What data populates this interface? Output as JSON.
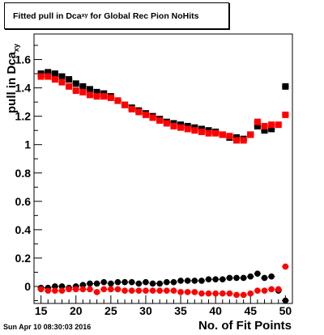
{
  "title": {
    "prefix": "Fitted pull in Dca",
    "sub": "xy",
    "suffix": " for Global Rec Pion NoHits"
  },
  "timestamp": "Sun Apr 10 08:30:03 2016",
  "chart_data": {
    "type": "scatter",
    "title": "Fitted pull in Dca_xy for Global Rec Pion NoHits",
    "xlabel": "No. of Fit Points",
    "ylabel": {
      "main": "pull in Dca",
      "sub": "xy"
    },
    "xlim": [
      14,
      51
    ],
    "ylim": [
      -0.12,
      1.78
    ],
    "x_ticks": [
      15,
      20,
      25,
      30,
      35,
      40,
      45,
      50
    ],
    "y_ticks": [
      0,
      0.2,
      0.4,
      0.6,
      0.8,
      1,
      1.2,
      1.4,
      1.6
    ],
    "y_tick_labels": [
      "0",
      "0.2",
      "0.4",
      "0.6",
      "0.8",
      "1",
      "1.2",
      "1.4",
      "1.6"
    ],
    "grid": false,
    "series": [
      {
        "color": "#000000",
        "x": [
          15,
          16,
          17,
          18,
          19,
          20,
          21,
          22,
          23,
          24,
          25,
          26,
          27,
          28,
          29,
          30,
          31,
          32,
          33,
          34,
          35,
          36,
          37,
          38,
          39,
          40,
          41,
          42,
          43,
          44,
          45,
          46,
          47,
          48,
          49,
          50
        ],
        "y": [
          1.5,
          1.51,
          1.5,
          1.48,
          1.46,
          1.43,
          1.41,
          1.39,
          1.37,
          1.36,
          1.34,
          1.31,
          1.28,
          1.26,
          1.24,
          1.22,
          1.2,
          1.18,
          1.16,
          1.15,
          1.14,
          1.13,
          1.12,
          1.11,
          1.1,
          1.09,
          1.07,
          1.05,
          1.05,
          1.04,
          1.07,
          1.13,
          1.1,
          1.11,
          null,
          1.41
        ]
      },
      {
        "color": "#ff0000",
        "x": [
          15,
          16,
          17,
          18,
          19,
          20,
          21,
          22,
          23,
          24,
          25,
          26,
          27,
          28,
          29,
          30,
          31,
          32,
          33,
          34,
          35,
          36,
          37,
          38,
          39,
          40,
          41,
          42,
          43,
          44,
          45,
          46,
          47,
          48,
          49,
          50
        ],
        "y": [
          1.48,
          1.48,
          1.46,
          1.44,
          1.41,
          1.38,
          1.37,
          1.35,
          1.34,
          1.34,
          1.33,
          1.31,
          1.28,
          1.25,
          1.23,
          1.21,
          1.19,
          1.17,
          1.15,
          1.13,
          1.12,
          1.11,
          1.1,
          1.09,
          1.08,
          1.08,
          1.07,
          1.06,
          1.03,
          1.03,
          1.07,
          1.16,
          1.13,
          1.14,
          1.14,
          1.21
        ]
      },
      {
        "color": "#000000",
        "x": [
          15,
          16,
          17,
          18,
          19,
          20,
          21,
          22,
          23,
          24,
          25,
          26,
          27,
          28,
          29,
          30,
          31,
          32,
          33,
          34,
          35,
          36,
          37,
          38,
          39,
          40,
          41,
          42,
          43,
          44,
          45,
          46,
          47,
          48,
          49,
          50
        ],
        "y": [
          -0.01,
          -0.01,
          0,
          0,
          -0.01,
          0,
          0.01,
          0.02,
          0.02,
          0.03,
          0.02,
          0.03,
          0.03,
          0.03,
          0.02,
          0.03,
          0.02,
          0.02,
          0.03,
          0.03,
          0.04,
          0.04,
          0.04,
          0.04,
          0.05,
          0.05,
          0.05,
          0.06,
          0.06,
          0.06,
          0.07,
          0.09,
          0.06,
          0.07,
          -0.03,
          -0.1
        ]
      },
      {
        "color": "#ff0000",
        "x": [
          15,
          16,
          17,
          18,
          19,
          20,
          21,
          22,
          23,
          24,
          25,
          26,
          27,
          28,
          29,
          30,
          31,
          32,
          33,
          34,
          35,
          36,
          37,
          38,
          39,
          40,
          41,
          42,
          43,
          44,
          45,
          46,
          47,
          48,
          49,
          50
        ],
        "y": [
          -0.02,
          -0.03,
          -0.03,
          -0.03,
          -0.02,
          -0.02,
          -0.02,
          -0.02,
          -0.04,
          -0.02,
          -0.02,
          -0.02,
          -0.03,
          -0.03,
          -0.03,
          -0.03,
          -0.03,
          -0.03,
          -0.03,
          -0.03,
          -0.04,
          -0.04,
          -0.04,
          -0.05,
          -0.05,
          -0.05,
          -0.05,
          -0.05,
          -0.06,
          -0.06,
          -0.05,
          -0.03,
          -0.03,
          -0.02,
          -0.02,
          0.14
        ]
      }
    ]
  }
}
